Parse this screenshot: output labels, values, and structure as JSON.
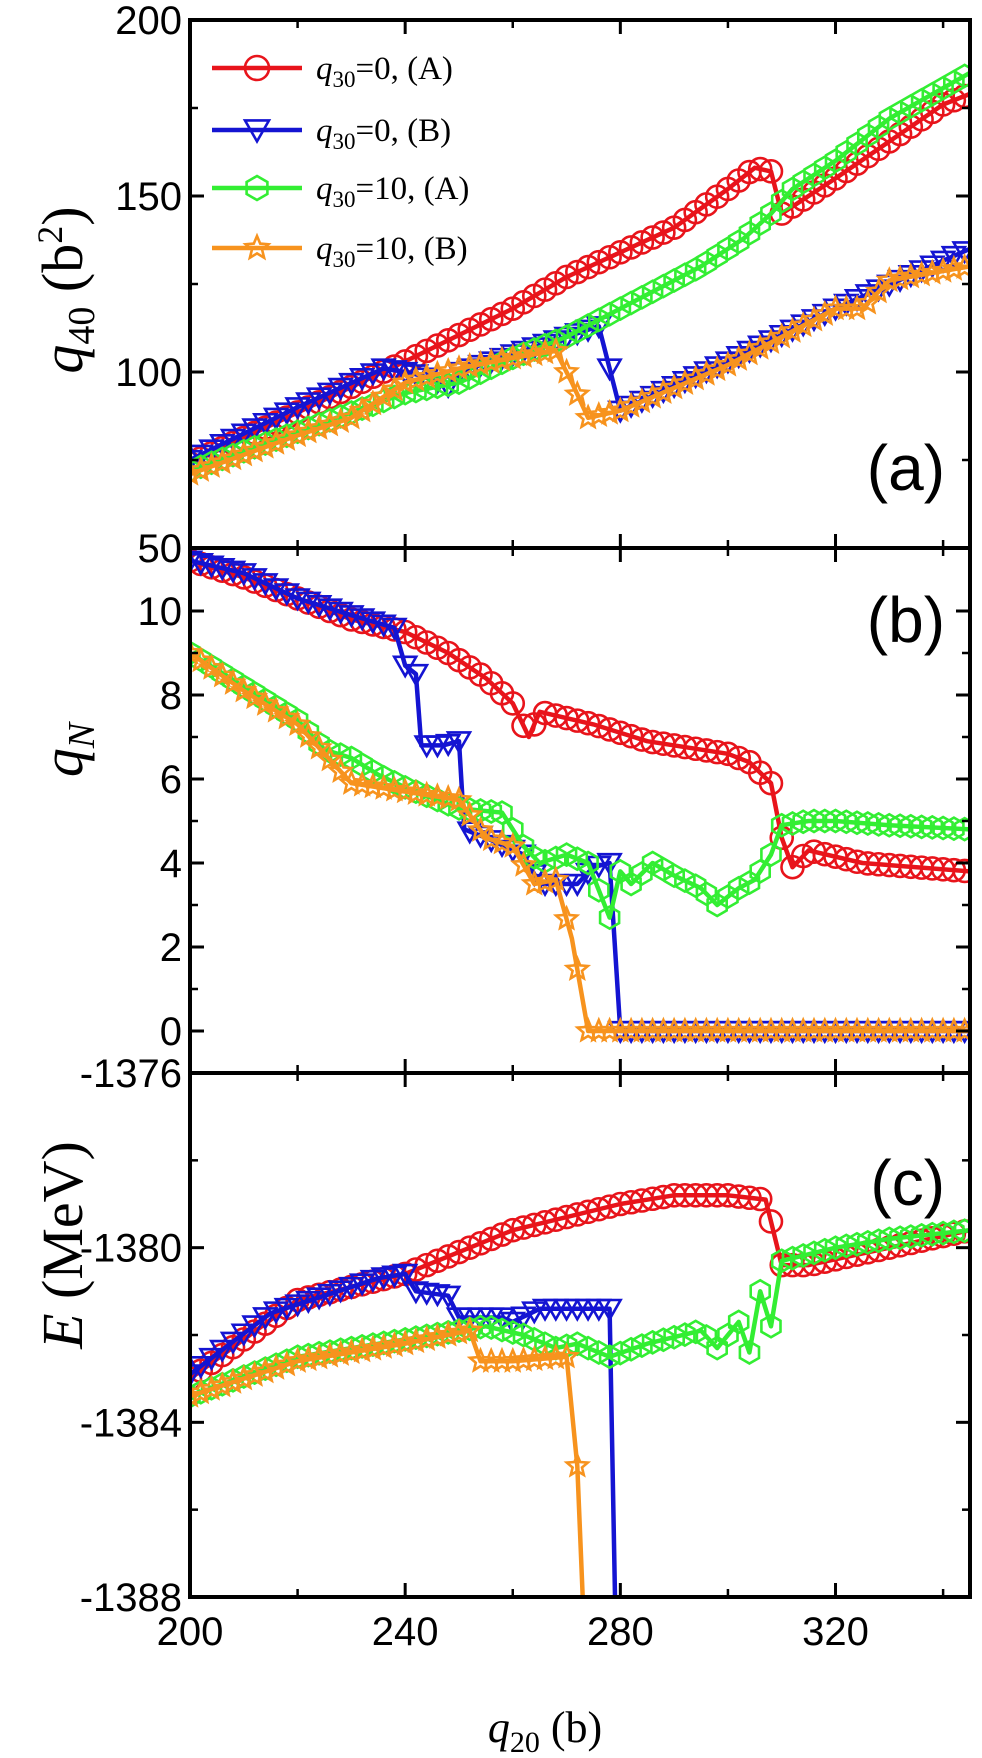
{
  "figure": {
    "x_axis": {
      "label_sym": "q",
      "label_sub": "20",
      "label_unit": " (b)",
      "range": [
        200,
        345
      ],
      "ticks": [
        200,
        240,
        280,
        320
      ],
      "tick_labels": [
        "200",
        "240",
        "280",
        "320"
      ]
    },
    "legend": [
      {
        "sym": "q",
        "sub": "30",
        "rest": "=0, (A)",
        "color": "#e8141b",
        "marker": "circle"
      },
      {
        "sym": "q",
        "sub": "30",
        "rest": "=0, (B)",
        "color": "#1414d2",
        "marker": "triangle-down"
      },
      {
        "sym": "q",
        "sub": "30",
        "rest": "=10, (A)",
        "color": "#33ee33",
        "marker": "hexagon"
      },
      {
        "sym": "q",
        "sub": "30",
        "rest": "=10, (B)",
        "color": "#f7931e",
        "marker": "star"
      }
    ]
  },
  "chart_data": [
    {
      "type": "line",
      "panel": "(a)",
      "ylabel_sym": "q",
      "ylabel_sub": "40",
      "ylabel_unit_pre": " (b",
      "ylabel_unit_sup": "2",
      "ylabel_unit_post": ")",
      "ylim": [
        50,
        200
      ],
      "yticks": [
        50,
        100,
        150,
        200
      ],
      "ytick_labels": [
        "50",
        "100",
        "150",
        "200"
      ],
      "series": [
        {
          "key": "s1",
          "points": [
            [
              200,
              74
            ],
            [
              240,
              103
            ],
            [
              260,
              118
            ],
            [
              270,
              127
            ],
            [
              290,
              141
            ],
            [
              300,
              152
            ],
            [
              305,
              158
            ],
            [
              308,
              157
            ],
            [
              310,
              145
            ],
            [
              320,
              155
            ],
            [
              340,
              176
            ],
            [
              345,
              179
            ]
          ]
        },
        {
          "key": "s2",
          "points": [
            [
              200,
              75
            ],
            [
              220,
              90
            ],
            [
              236,
              101
            ],
            [
              240,
              100
            ],
            [
              243,
              99
            ],
            [
              248,
              96
            ],
            [
              250,
              100
            ],
            [
              260,
              105
            ],
            [
              270,
              110
            ],
            [
              276,
              113
            ],
            [
              279,
              95
            ],
            [
              280,
              89
            ],
            [
              300,
              103
            ],
            [
              320,
              118
            ],
            [
              345,
              135
            ]
          ]
        },
        {
          "key": "s3",
          "points": [
            [
              200,
              72
            ],
            [
              220,
              83
            ],
            [
              240,
              94
            ],
            [
              250,
              97
            ],
            [
              260,
              104
            ],
            [
              270,
              110
            ],
            [
              280,
              118
            ],
            [
              295,
              130
            ],
            [
              303,
              138
            ],
            [
              308,
              145
            ],
            [
              312,
              152
            ],
            [
              320,
              160
            ],
            [
              330,
              172
            ],
            [
              345,
              185
            ]
          ]
        },
        {
          "key": "s4",
          "points": [
            [
              200,
              71
            ],
            [
              220,
              82
            ],
            [
              230,
              87
            ],
            [
              240,
              97
            ],
            [
              250,
              101
            ],
            [
              260,
              104
            ],
            [
              268,
              106
            ],
            [
              271,
              97
            ],
            [
              274,
              87
            ],
            [
              280,
              89
            ],
            [
              300,
              102
            ],
            [
              320,
              118
            ],
            [
              325,
              118
            ],
            [
              330,
              126
            ],
            [
              345,
              130
            ]
          ]
        }
      ]
    },
    {
      "type": "line",
      "panel": "(b)",
      "ylabel_sym": "q",
      "ylabel_sub": "N",
      "ylim": [
        -1,
        11.5
      ],
      "yticks": [
        0,
        2,
        4,
        6,
        8,
        10
      ],
      "ytick_labels": [
        "0",
        "2",
        "4",
        "6",
        "8",
        "10"
      ],
      "series": [
        {
          "key": "s1",
          "points": [
            [
              200,
              11.2
            ],
            [
              210,
              10.8
            ],
            [
              220,
              10.3
            ],
            [
              230,
              9.8
            ],
            [
              240,
              9.5
            ],
            [
              248,
              9.0
            ],
            [
              255,
              8.4
            ],
            [
              260,
              7.8
            ],
            [
              263,
              7.0
            ],
            [
              265,
              7.6
            ],
            [
              275,
              7.3
            ],
            [
              285,
              6.9
            ],
            [
              300,
              6.6
            ],
            [
              304,
              6.4
            ],
            [
              308,
              5.9
            ],
            [
              310,
              4.6
            ],
            [
              312,
              3.9
            ],
            [
              315,
              4.3
            ],
            [
              325,
              4.0
            ],
            [
              345,
              3.8
            ]
          ]
        },
        {
          "key": "s2",
          "points": [
            [
              200,
              11.2
            ],
            [
              210,
              10.9
            ],
            [
              220,
              10.3
            ],
            [
              230,
              9.9
            ],
            [
              238,
              9.6
            ],
            [
              240,
              8.7
            ],
            [
              242,
              8.5
            ],
            [
              243,
              6.8
            ],
            [
              247,
              6.8
            ],
            [
              250,
              6.9
            ],
            [
              251,
              4.8
            ],
            [
              255,
              4.6
            ],
            [
              262,
              4.2
            ],
            [
              265,
              3.5
            ],
            [
              268,
              3.5
            ],
            [
              272,
              3.5
            ],
            [
              275,
              3.9
            ],
            [
              278,
              4.0
            ],
            [
              280,
              0
            ],
            [
              290,
              0
            ],
            [
              345,
              0
            ]
          ]
        },
        {
          "key": "s3",
          "points": [
            [
              200,
              9.0
            ],
            [
              210,
              8.2
            ],
            [
              220,
              7.4
            ],
            [
              225,
              6.7
            ],
            [
              230,
              6.5
            ],
            [
              235,
              6.1
            ],
            [
              240,
              5.8
            ],
            [
              250,
              5.3
            ],
            [
              258,
              5.2
            ],
            [
              262,
              4.4
            ],
            [
              265,
              4.0
            ],
            [
              270,
              4.2
            ],
            [
              274,
              4.0
            ],
            [
              278,
              2.7
            ],
            [
              280,
              3.8
            ],
            [
              282,
              3.5
            ],
            [
              286,
              4.0
            ],
            [
              290,
              3.7
            ],
            [
              295,
              3.4
            ],
            [
              298,
              3.0
            ],
            [
              302,
              3.4
            ],
            [
              305,
              3.6
            ],
            [
              308,
              4.2
            ],
            [
              310,
              4.9
            ],
            [
              315,
              5.0
            ],
            [
              320,
              5.0
            ],
            [
              330,
              4.9
            ],
            [
              345,
              4.8
            ]
          ]
        },
        {
          "key": "s4",
          "points": [
            [
              200,
              9.0
            ],
            [
              210,
              8.1
            ],
            [
              220,
              7.3
            ],
            [
              225,
              6.6
            ],
            [
              230,
              5.9
            ],
            [
              240,
              5.7
            ],
            [
              250,
              5.5
            ],
            [
              255,
              4.6
            ],
            [
              260,
              4.4
            ],
            [
              264,
              3.5
            ],
            [
              268,
              3.6
            ],
            [
              271,
              2.2
            ],
            [
              274,
              0
            ],
            [
              280,
              0
            ],
            [
              300,
              0
            ],
            [
              345,
              0
            ]
          ]
        }
      ]
    },
    {
      "type": "line",
      "panel": "(c)",
      "ylabel_sym": "E",
      "ylabel_unit": " (MeV)",
      "ylim": [
        -1388,
        -1376
      ],
      "yticks": [
        -1388,
        -1384,
        -1380,
        -1376
      ],
      "ytick_labels": [
        "-1388",
        "-1384",
        "-1380",
        "-1376"
      ],
      "series": [
        {
          "key": "s1",
          "points": [
            [
              200,
              -1383.0
            ],
            [
              220,
              -1381.2
            ],
            [
              240,
              -1380.6
            ],
            [
              260,
              -1379.6
            ],
            [
              280,
              -1379.0
            ],
            [
              290,
              -1378.8
            ],
            [
              300,
              -1378.8
            ],
            [
              307,
              -1378.9
            ],
            [
              310,
              -1380.4
            ],
            [
              315,
              -1380.4
            ],
            [
              330,
              -1380.0
            ],
            [
              345,
              -1379.6
            ]
          ]
        },
        {
          "key": "s2",
          "points": [
            [
              200,
              -1382.9
            ],
            [
              215,
              -1381.5
            ],
            [
              225,
              -1381.1
            ],
            [
              235,
              -1380.7
            ],
            [
              240,
              -1380.6
            ],
            [
              242,
              -1381.0
            ],
            [
              248,
              -1381.1
            ],
            [
              250,
              -1381.6
            ],
            [
              258,
              -1381.6
            ],
            [
              260,
              -1381.7
            ],
            [
              265,
              -1381.4
            ],
            [
              270,
              -1381.4
            ],
            [
              278,
              -1381.4
            ],
            [
              279,
              -1388
            ]
          ]
        },
        {
          "key": "s3",
          "points": [
            [
              200,
              -1383.4
            ],
            [
              220,
              -1382.5
            ],
            [
              240,
              -1382.1
            ],
            [
              255,
              -1381.8
            ],
            [
              262,
              -1382.0
            ],
            [
              268,
              -1382.3
            ],
            [
              272,
              -1382.2
            ],
            [
              278,
              -1382.5
            ],
            [
              285,
              -1382.2
            ],
            [
              295,
              -1381.9
            ],
            [
              298,
              -1382.3
            ],
            [
              302,
              -1381.7
            ],
            [
              304,
              -1382.4
            ],
            [
              306,
              -1381.0
            ],
            [
              308,
              -1381.8
            ],
            [
              310,
              -1380.3
            ],
            [
              320,
              -1380.0
            ],
            [
              330,
              -1379.8
            ],
            [
              345,
              -1379.6
            ]
          ]
        },
        {
          "key": "s4",
          "points": [
            [
              200,
              -1383.4
            ],
            [
              220,
              -1382.6
            ],
            [
              240,
              -1382.2
            ],
            [
              252,
              -1381.9
            ],
            [
              254,
              -1382.6
            ],
            [
              260,
              -1382.6
            ],
            [
              270,
              -1382.5
            ],
            [
              272,
              -1385.0
            ],
            [
              273,
              -1388
            ]
          ]
        }
      ]
    }
  ]
}
